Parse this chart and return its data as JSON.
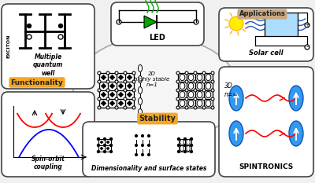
{
  "bg_color": "#f0f0f0",
  "box_fc": "#ffffff",
  "box_ec": "#444444",
  "ellipse_fc": "#f8f8f8",
  "ellipse_ec": "#888888",
  "functionality_label": "Functionality",
  "stability_label": "Stability",
  "applications_label": "Applications",
  "label_2d": "2D\nhighly stable\nn=1",
  "label_3d": "3D\nn=∞",
  "label_mqw": "Multiple\nquantum\nwell",
  "label_exciton": "EXCITON",
  "label_soc": "Spin-orbit\ncoupling",
  "label_led": "LED",
  "label_solar": "Solar cell",
  "label_dim": "Dimensionality and surface states",
  "label_spint": "SPINTRONICS",
  "func_bg": "#f5a623",
  "stab_bg": "#f5a623",
  "appl_bg": "#c8a882"
}
